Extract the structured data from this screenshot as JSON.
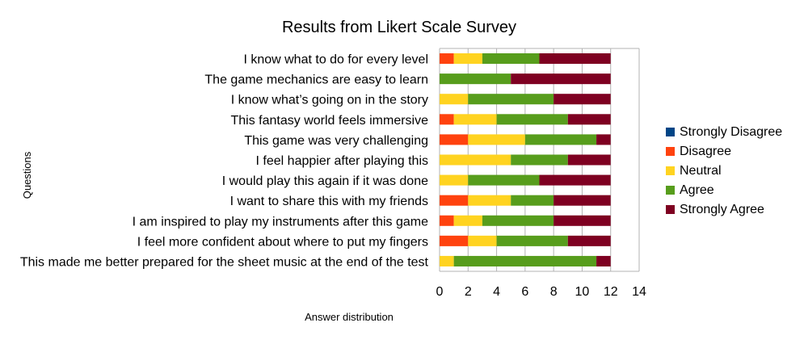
{
  "chart_data": {
    "type": "bar",
    "orientation": "horizontal",
    "stacked": true,
    "title": "Results from Likert Scale Survey",
    "xlabel": "Answer distribution",
    "ylabel": "Questions",
    "xlim": [
      0,
      14
    ],
    "xticks": [
      0,
      2,
      4,
      6,
      8,
      10,
      12,
      14
    ],
    "grid": true,
    "legend_position": "right",
    "categories": [
      "I know what to do for every level",
      "The game mechanics are easy to learn",
      "I know what’s going on in the story",
      "This fantasy world feels immersive",
      "This game was very challenging",
      "I feel happier after playing this",
      "I would play this again if it was done",
      "I want to share this with my friends",
      "I am inspired to play my instruments after this game",
      "I feel more confident about where to put my fingers",
      "This made me better prepared for the sheet music at the end of the test"
    ],
    "series": [
      {
        "name": "Strongly Disagree",
        "color": "#004586",
        "values": [
          0,
          0,
          0,
          0,
          0,
          0,
          0,
          0,
          0,
          0,
          0
        ]
      },
      {
        "name": "Disagree",
        "color": "#ff420e",
        "values": [
          1,
          0,
          0,
          1,
          2,
          0,
          0,
          2,
          1,
          2,
          0
        ]
      },
      {
        "name": "Neutral",
        "color": "#ffd320",
        "values": [
          2,
          0,
          2,
          3,
          4,
          5,
          2,
          3,
          2,
          2,
          1
        ]
      },
      {
        "name": "Agree",
        "color": "#579d1c",
        "values": [
          4,
          5,
          6,
          5,
          5,
          4,
          5,
          3,
          5,
          5,
          10
        ]
      },
      {
        "name": "Strongly Agree",
        "color": "#7e0021",
        "values": [
          5,
          7,
          4,
          3,
          1,
          3,
          5,
          4,
          4,
          3,
          1
        ]
      }
    ]
  }
}
